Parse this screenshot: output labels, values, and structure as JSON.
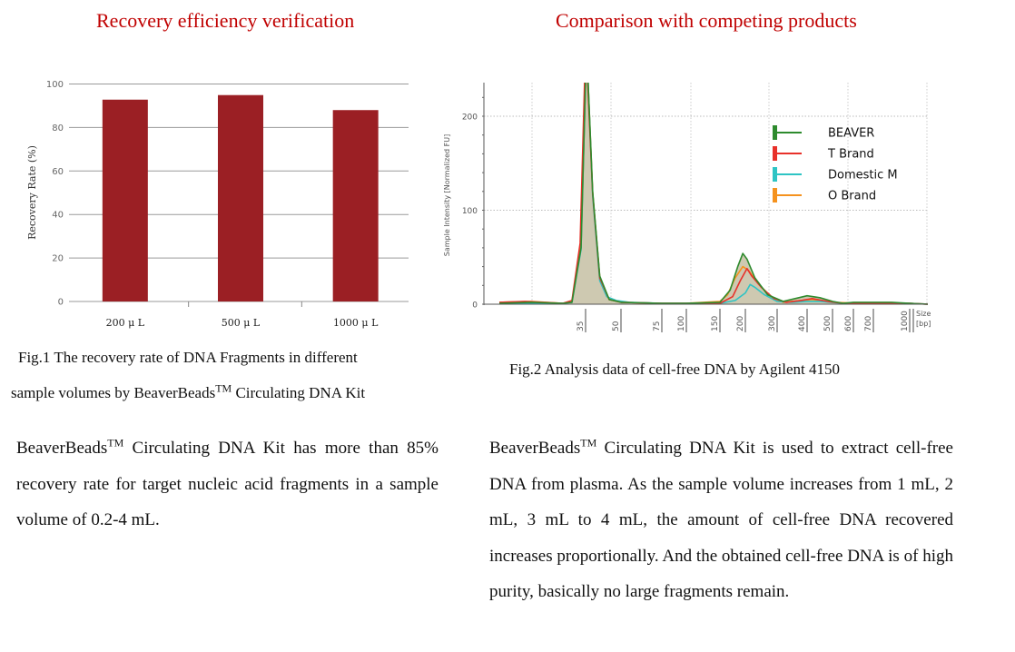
{
  "titles": {
    "left": "Recovery efficiency verification",
    "right": "Comparison with competing products"
  },
  "captions": {
    "fig1_line1": "Fig.1 The recovery rate of DNA Fragments in different",
    "fig1_line2_pre": "sample volumes by BeaverBeads",
    "fig1_line2_tm": "TM",
    "fig1_line2_post": " Circulating DNA Kit",
    "fig2": "Fig.2 Analysis data of cell-free DNA by Agilent 4150"
  },
  "paragraphs": {
    "left_brand": "BeaverBeads",
    "left_tm": "TM",
    "left_text": " Circulating DNA Kit has more than 85% recovery rate for target nucleic acid fragments in a sample volume of 0.2-4 mL.",
    "right_brand": "BeaverBeads",
    "right_tm": "TM",
    "right_text": " Circulating DNA Kit is used to extract cell-free DNA from plasma. As the sample volume increases from 1 mL, 2 mL, 3 mL to 4 mL, the amount of cell-free DNA recovered increases proportionally. And the obtained cell-free DNA is of high purity, basically no large fragments remain."
  },
  "chart_data": [
    {
      "type": "bar",
      "title": "Recovery efficiency verification",
      "categories": [
        "200 μ L",
        "500 μ L",
        "1000 μ L"
      ],
      "values": [
        92.8,
        94.9,
        88.0
      ],
      "xlabel": "",
      "ylabel": "Recovery Rate (%)",
      "ylim": [
        0,
        100
      ],
      "yticks": [
        0,
        20,
        40,
        60,
        80,
        100
      ],
      "grid": true,
      "bar_color": "#9b1f24"
    },
    {
      "type": "line",
      "title": "Comparison with competing products",
      "xlabel": "Size [bp]",
      "xlabel_line1": "Size",
      "xlabel_line2": "[bp]",
      "ylabel": "Sample Intensity [Normalized FU]",
      "ylim": [
        0,
        230
      ],
      "yticks": [
        0,
        100,
        200
      ],
      "xticks": [
        35,
        50,
        75,
        100,
        150,
        200,
        300,
        400,
        500,
        600,
        700,
        1000
      ],
      "legend_position": "top-right",
      "grid": true,
      "fill_color": "#c9c3a8",
      "series": [
        {
          "name": "BEAVER",
          "color": "#2e8b2e",
          "points": [
            [
              20,
              1
            ],
            [
              25,
              2
            ],
            [
              30,
              1
            ],
            [
              32,
              2
            ],
            [
              34,
              60
            ],
            [
              35,
              240
            ],
            [
              36,
              240
            ],
            [
              38,
              120
            ],
            [
              41,
              30
            ],
            [
              45,
              5
            ],
            [
              50,
              2
            ],
            [
              75,
              1
            ],
            [
              100,
              1
            ],
            [
              150,
              2
            ],
            [
              170,
              15
            ],
            [
              185,
              40
            ],
            [
              195,
              54
            ],
            [
              205,
              48
            ],
            [
              230,
              28
            ],
            [
              270,
              10
            ],
            [
              320,
              3
            ],
            [
              360,
              6
            ],
            [
              400,
              9
            ],
            [
              450,
              7
            ],
            [
              500,
              3
            ],
            [
              550,
              1
            ],
            [
              600,
              2
            ],
            [
              700,
              2
            ],
            [
              850,
              2
            ],
            [
              1000,
              1
            ],
            [
              1200,
              0
            ]
          ]
        },
        {
          "name": "T Brand",
          "color": "#e8312a",
          "points": [
            [
              20,
              2
            ],
            [
              24,
              3
            ],
            [
              30,
              1
            ],
            [
              32,
              4
            ],
            [
              33.8,
              65
            ],
            [
              34.8,
              240
            ],
            [
              35.8,
              240
            ],
            [
              38,
              118
            ],
            [
              41,
              28
            ],
            [
              45,
              5
            ],
            [
              50,
              2
            ],
            [
              75,
              1
            ],
            [
              100,
              1
            ],
            [
              150,
              1
            ],
            [
              175,
              8
            ],
            [
              190,
              25
            ],
            [
              205,
              38
            ],
            [
              220,
              30
            ],
            [
              250,
              18
            ],
            [
              290,
              6
            ],
            [
              330,
              2
            ],
            [
              380,
              4
            ],
            [
              420,
              6
            ],
            [
              480,
              3
            ],
            [
              550,
              1
            ],
            [
              650,
              1
            ],
            [
              850,
              1
            ],
            [
              1000,
              1
            ],
            [
              1200,
              0
            ]
          ]
        },
        {
          "name": "Domestic M",
          "color": "#2ec4c4",
          "points": [
            [
              20,
              1
            ],
            [
              26,
              1
            ],
            [
              30,
              1
            ],
            [
              32,
              2
            ],
            [
              34,
              58
            ],
            [
              35,
              240
            ],
            [
              36,
              240
            ],
            [
              38,
              115
            ],
            [
              41,
              25
            ],
            [
              44,
              8
            ],
            [
              48,
              4
            ],
            [
              55,
              2
            ],
            [
              75,
              1
            ],
            [
              100,
              1
            ],
            [
              150,
              1
            ],
            [
              180,
              4
            ],
            [
              200,
              12
            ],
            [
              215,
              21
            ],
            [
              230,
              18
            ],
            [
              260,
              10
            ],
            [
              300,
              3
            ],
            [
              350,
              2
            ],
            [
              400,
              3
            ],
            [
              450,
              3
            ],
            [
              550,
              1
            ],
            [
              800,
              1
            ],
            [
              1000,
              1
            ],
            [
              1200,
              0
            ]
          ]
        },
        {
          "name": "O Brand",
          "color": "#f5921e",
          "points": [
            [
              20,
              2
            ],
            [
              25,
              3
            ],
            [
              30,
              1
            ],
            [
              32,
              3
            ],
            [
              34,
              62
            ],
            [
              35,
              240
            ],
            [
              36,
              240
            ],
            [
              38,
              119
            ],
            [
              41,
              29
            ],
            [
              45,
              5
            ],
            [
              50,
              2
            ],
            [
              75,
              1
            ],
            [
              100,
              1
            ],
            [
              150,
              3
            ],
            [
              165,
              10
            ],
            [
              180,
              28
            ],
            [
              195,
              40
            ],
            [
              210,
              36
            ],
            [
              240,
              22
            ],
            [
              280,
              8
            ],
            [
              320,
              2
            ],
            [
              380,
              4
            ],
            [
              420,
              5
            ],
            [
              500,
              2
            ],
            [
              650,
              1
            ],
            [
              850,
              1
            ],
            [
              1000,
              1
            ],
            [
              1200,
              0
            ]
          ]
        }
      ]
    }
  ]
}
